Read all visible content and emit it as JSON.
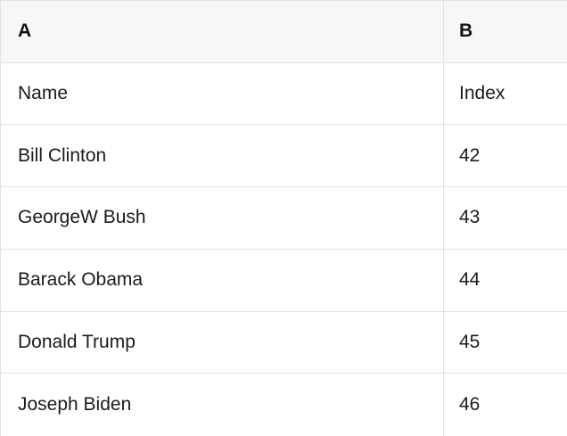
{
  "table": {
    "column_headers": [
      "A",
      "B"
    ],
    "rows": [
      {
        "a": "Name",
        "b": "Index"
      },
      {
        "a": "Bill Clinton",
        "b": "42"
      },
      {
        "a": "GeorgeW Bush",
        "b": "43"
      },
      {
        "a": "Barack Obama",
        "b": "44"
      },
      {
        "a": "Donald Trump",
        "b": "45"
      },
      {
        "a": "Joseph Biden",
        "b": "46"
      }
    ]
  },
  "colors": {
    "header_bg": "#f7f7f7",
    "border": "#e2e2e2",
    "text": "#1b1b1b"
  }
}
